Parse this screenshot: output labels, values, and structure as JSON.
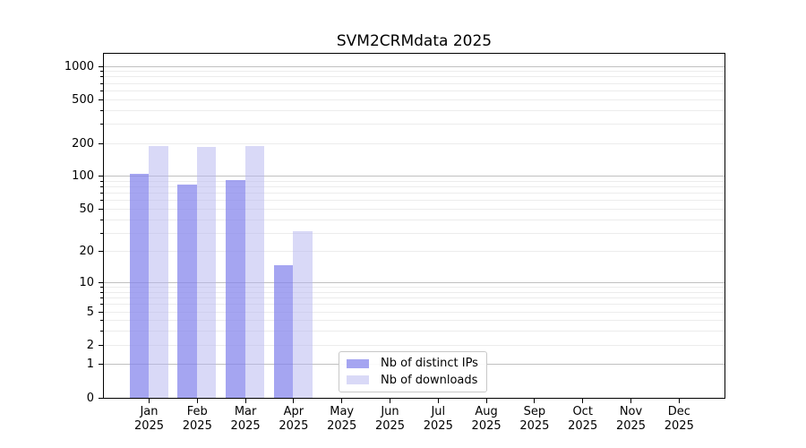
{
  "chart_data": {
    "type": "bar",
    "title": "SVM2CRMdata 2025",
    "categories": [
      "Jan",
      "Feb",
      "Mar",
      "Apr",
      "May",
      "Jun",
      "Jul",
      "Aug",
      "Sep",
      "Oct",
      "Nov",
      "Dec"
    ],
    "year_label": "2025",
    "series": [
      {
        "name": "Nb of distinct IPs",
        "color": "rgba(130,130,235,0.72)",
        "values": [
          105,
          84,
          92,
          15,
          0,
          0,
          0,
          0,
          0,
          0,
          0,
          0
        ]
      },
      {
        "name": "Nb of downloads",
        "color": "rgba(180,180,240,0.5)",
        "values": [
          190,
          185,
          190,
          31,
          0,
          0,
          0,
          0,
          0,
          0,
          0,
          0
        ]
      }
    ],
    "y_axis": {
      "scale": "log1p",
      "ticks": [
        0,
        1,
        2,
        5,
        10,
        20,
        50,
        100,
        200,
        500,
        1000
      ],
      "limit": 1300
    },
    "x_axis": {
      "tick_label_format": "month-over-year"
    },
    "grid": {
      "major_color": "#c0c0c0",
      "minor_color": "#ececec"
    },
    "legend": {
      "position": "bottom-center"
    }
  }
}
